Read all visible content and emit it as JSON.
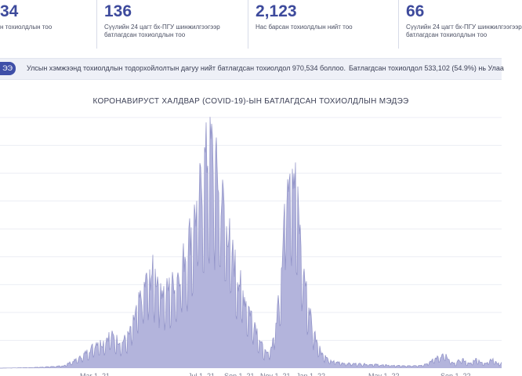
{
  "stats": [
    {
      "value": "34",
      "label_lines": [
        "н тохиолдлын тоо"
      ]
    },
    {
      "value": "136",
      "label_lines": [
        "Сүүлийн 24 цагт бх-ПГУ шинжилгээгээр",
        "батлагдсан тохиолдлын тоо"
      ]
    },
    {
      "value": "2,123",
      "label_lines": [
        "Нас барсан тохиолдлын нийт тоо"
      ]
    },
    {
      "value": "66",
      "label_lines": [
        "Сүүлийн 24 цагт бх-ПГУ шинжилгээгээр",
        "батлагдсан тохиолдлын тоо"
      ]
    }
  ],
  "ticker": {
    "badge": "ЭЭ",
    "text": "Улсын хэмжээнд тохиолдлын тодорхойлолтын дагуу нийт батлагдсан тохиолдол 970,534 боллоо.",
    "text2": "Батлагдсан тохиолдол 533,102 (54.9%) нь Улаа"
  },
  "colors": {
    "accent": "#3d4a9c",
    "area_fill": "#b3b4dc",
    "area_line": "#8e90c6",
    "grid": "#eceef4",
    "ticker_bg": "#eef0f7"
  },
  "chart_data": {
    "type": "area",
    "title": "КОРОНАВИРУСТ ХАЛДВАР (COVID-19)-ЫН БАТЛАГДСАН ТОХИОЛДЛЫН МЭДЭЭ",
    "x_tick_labels": [
      "...",
      "...",
      "Mar 1, 21",
      "...",
      "...",
      "Jul 1, 21",
      "Sep 1, 21",
      "Nov 1, 21",
      "Jan 1, 22",
      "...",
      "May 1, 22",
      "...",
      "Sep 1, 22",
      "..."
    ],
    "grid": true,
    "ylim": [
      0,
      9000
    ],
    "series": [
      {
        "x_index_range": [
          0,
          299
        ],
        "envelope": [
          [
            0,
            0
          ],
          [
            40,
            20
          ],
          [
            80,
            80
          ],
          [
            100,
            350
          ],
          [
            115,
            700
          ],
          [
            125,
            1000
          ],
          [
            130,
            900
          ],
          [
            140,
            1250
          ],
          [
            148,
            1100
          ],
          [
            155,
            950
          ],
          [
            165,
            1250
          ],
          [
            175,
            2200
          ],
          [
            185,
            3100
          ],
          [
            195,
            3550
          ],
          [
            202,
            3300
          ],
          [
            210,
            2800
          ],
          [
            220,
            3100
          ],
          [
            232,
            3800
          ],
          [
            242,
            4900
          ],
          [
            252,
            6000
          ],
          [
            262,
            7700
          ],
          [
            270,
            8150
          ],
          [
            278,
            7000
          ],
          [
            286,
            5950
          ],
          [
            296,
            4300
          ],
          [
            305,
            3250
          ],
          [
            315,
            2400
          ],
          [
            325,
            1700
          ],
          [
            333,
            900
          ],
          [
            340,
            500
          ],
          [
            346,
            750
          ],
          [
            352,
            1600
          ],
          [
            358,
            3400
          ],
          [
            364,
            6500
          ],
          [
            370,
            8200
          ],
          [
            374,
            7700
          ],
          [
            379,
            6200
          ],
          [
            385,
            4200
          ],
          [
            392,
            2600
          ],
          [
            400,
            1400
          ],
          [
            410,
            600
          ],
          [
            420,
            270
          ],
          [
            440,
            180
          ],
          [
            470,
            150
          ],
          [
            500,
            100
          ],
          [
            520,
            80
          ],
          [
            540,
            120
          ],
          [
            555,
            350
          ],
          [
            565,
            500
          ],
          [
            570,
            450
          ]
        ]
      }
    ]
  }
}
